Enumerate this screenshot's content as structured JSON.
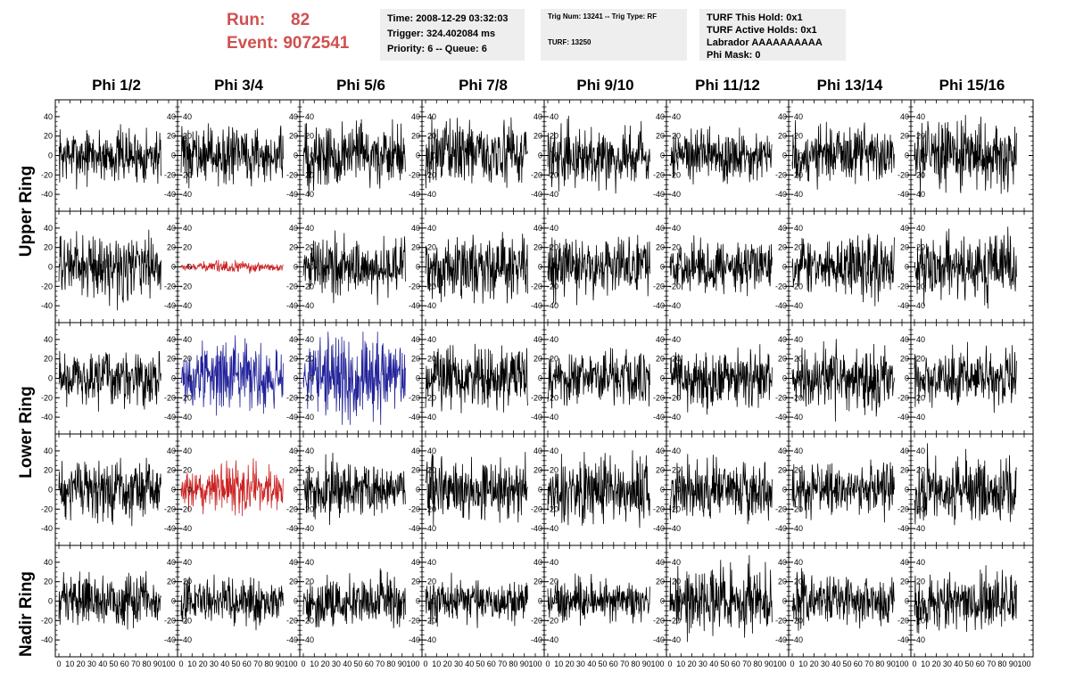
{
  "header": {
    "run_label": "Run:",
    "run_value": "82",
    "event_label": "Event:",
    "event_value": "9072541"
  },
  "info_time": {
    "time": "Time: 2008-12-29 03:32:03",
    "trigger": "Trigger: 324.402084 ms",
    "priority": "Priority: 6 -- Queue: 6"
  },
  "info_trig": {
    "trig": "Trig Num: 13241 -- Trig Type: RF",
    "turf": "TURF: 13250"
  },
  "info_turf": {
    "hold": "TURF This Hold: 0x1",
    "active": "TURF Active Holds: 0x1",
    "labrador": "Labrador AAAAAAAAAA",
    "phimask": "Phi Mask: 0"
  },
  "columns": [
    "Phi 1/2",
    "Phi 3/4",
    "Phi 5/6",
    "Phi 7/8",
    "Phi 9/10",
    "Phi 11/12",
    "Phi 13/14",
    "Phi 15/16"
  ],
  "rings": [
    "Upper Ring",
    "Lower Ring",
    "Nadir Ring"
  ],
  "colors": {
    "normal": "#000000",
    "red": "#cc2222",
    "blue": "#22229a",
    "frame": "#000000"
  },
  "chart_data": {
    "type": "line",
    "description_rows": 5,
    "x_range": [
      0,
      100
    ],
    "y_range": [
      -50,
      50
    ],
    "y_ticks": [
      -40,
      -20,
      0,
      20,
      40
    ],
    "x_ticks": [
      0,
      10,
      20,
      30,
      40,
      50,
      60,
      70,
      80,
      90,
      100
    ],
    "traces": [
      [
        {
          "color": "normal",
          "amp": 13
        },
        {
          "color": "normal",
          "amp": 13
        },
        {
          "color": "normal",
          "amp": 16
        },
        {
          "color": "normal",
          "amp": 15
        },
        {
          "color": "normal",
          "amp": 14
        },
        {
          "color": "normal",
          "amp": 13
        },
        {
          "color": "normal",
          "amp": 14
        },
        {
          "color": "normal",
          "amp": 16
        }
      ],
      [
        {
          "color": "normal",
          "amp": 15
        },
        {
          "color": "red",
          "amp": 2.5
        },
        {
          "color": "normal",
          "amp": 14
        },
        {
          "color": "normal",
          "amp": 15
        },
        {
          "color": "normal",
          "amp": 14
        },
        {
          "color": "normal",
          "amp": 12
        },
        {
          "color": "normal",
          "amp": 14
        },
        {
          "color": "normal",
          "amp": 15
        }
      ],
      [
        {
          "color": "normal",
          "amp": 13
        },
        {
          "color": "blue",
          "amp": 16
        },
        {
          "color": "blue",
          "amp": 20
        },
        {
          "color": "normal",
          "amp": 15
        },
        {
          "color": "normal",
          "amp": 13
        },
        {
          "color": "normal",
          "amp": 14
        },
        {
          "color": "normal",
          "amp": 15
        },
        {
          "color": "normal",
          "amp": 13
        }
      ],
      [
        {
          "color": "normal",
          "amp": 14
        },
        {
          "color": "red",
          "amp": 12
        },
        {
          "color": "normal",
          "amp": 13
        },
        {
          "color": "normal",
          "amp": 15
        },
        {
          "color": "normal",
          "amp": 16
        },
        {
          "color": "normal",
          "amp": 14
        },
        {
          "color": "normal",
          "amp": 12
        },
        {
          "color": "normal",
          "amp": 16
        }
      ],
      [
        {
          "color": "normal",
          "amp": 12
        },
        {
          "color": "normal",
          "amp": 11
        },
        {
          "color": "normal",
          "amp": 12
        },
        {
          "color": "normal",
          "amp": 11
        },
        {
          "color": "normal",
          "amp": 10
        },
        {
          "color": "normal",
          "amp": 16
        },
        {
          "color": "normal",
          "amp": 12
        },
        {
          "color": "normal",
          "amp": 13
        }
      ]
    ]
  }
}
